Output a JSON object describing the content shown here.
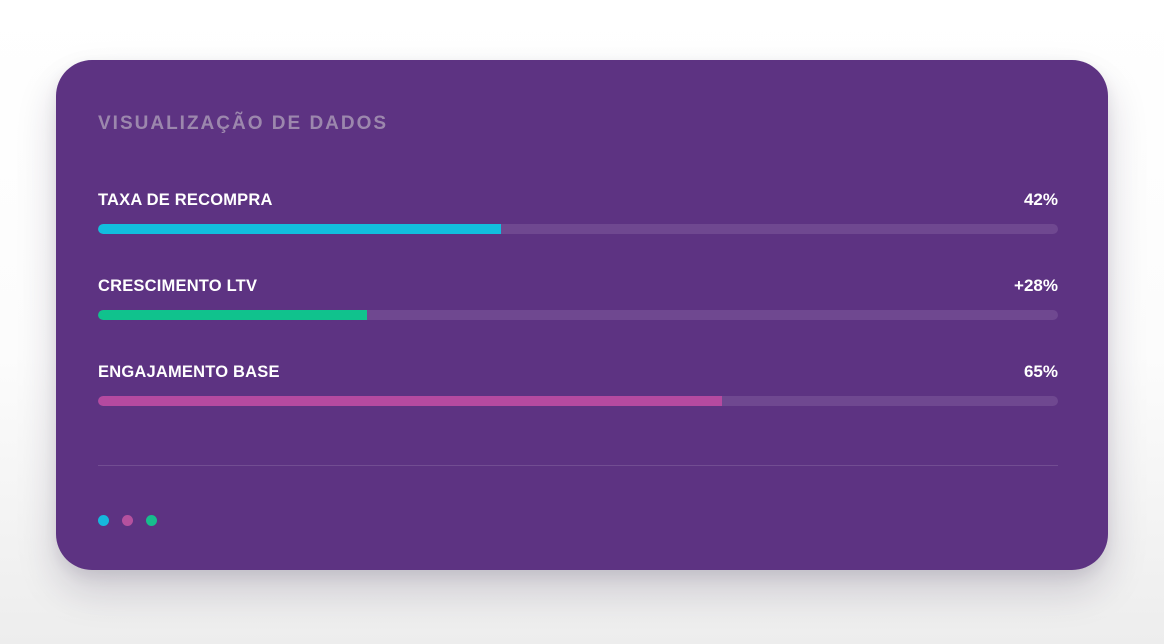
{
  "card": {
    "title": "VISUALIZAÇÃO DE DADOS",
    "metrics": [
      {
        "label": "TAXA DE RECOMPRA",
        "value": "42%",
        "percent": 42,
        "color": "#12bede"
      },
      {
        "label": "CRESCIMENTO LTV",
        "value": "+28%",
        "percent": 28,
        "color": "#10c28d"
      },
      {
        "label": "ENGAJAMENTO BASE",
        "value": "65%",
        "percent": 65,
        "color": "#b54aa0"
      }
    ],
    "legend_dots": [
      {
        "name": "cyan-dot",
        "color": "#16b8dc"
      },
      {
        "name": "pink-dot",
        "color": "#b5519e"
      },
      {
        "name": "green-dot",
        "color": "#17bd8d"
      }
    ],
    "colors": {
      "card_background": "#5d3382",
      "bar_track": "#6f4890",
      "title_text": "#9c87ad",
      "label_text": "#ffffff"
    }
  },
  "chart_data": {
    "type": "bar",
    "orientation": "horizontal",
    "title": "VISUALIZAÇÃO DE DADOS",
    "categories": [
      "TAXA DE RECOMPRA",
      "CRESCIMENTO LTV",
      "ENGAJAMENTO BASE"
    ],
    "values": [
      42,
      28,
      65
    ],
    "value_labels": [
      "42%",
      "+28%",
      "65%"
    ],
    "xlim": [
      0,
      100
    ],
    "bar_colors": [
      "#12bede",
      "#10c28d",
      "#b54aa0"
    ],
    "xlabel": "",
    "ylabel": "",
    "grid": false,
    "legend_position": "none"
  }
}
